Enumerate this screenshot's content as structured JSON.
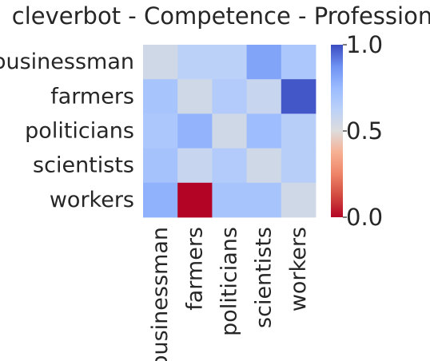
{
  "chart_data": {
    "type": "heatmap",
    "title": "cleverbot - Competence - Profession",
    "row_labels": [
      "businessman",
      "farmers",
      "politicians",
      "scientists",
      "workers"
    ],
    "col_labels": [
      "businessman",
      "farmers",
      "politicians",
      "scientists",
      "workers"
    ],
    "values": [
      [
        0.55,
        0.62,
        0.62,
        0.82,
        0.68
      ],
      [
        0.7,
        0.55,
        0.66,
        0.58,
        0.98
      ],
      [
        0.68,
        0.77,
        0.55,
        0.74,
        0.64
      ],
      [
        0.71,
        0.58,
        0.66,
        0.55,
        0.64
      ],
      [
        0.78,
        0.0,
        0.7,
        0.7,
        0.55
      ]
    ],
    "colormap": "coolwarm",
    "vmin": 0.0,
    "vmax": 1.0,
    "colorbar": {
      "ticks": [
        0.0,
        0.5,
        1.0
      ],
      "tick_labels": [
        "0.0",
        "0.5",
        "1.0"
      ]
    }
  }
}
